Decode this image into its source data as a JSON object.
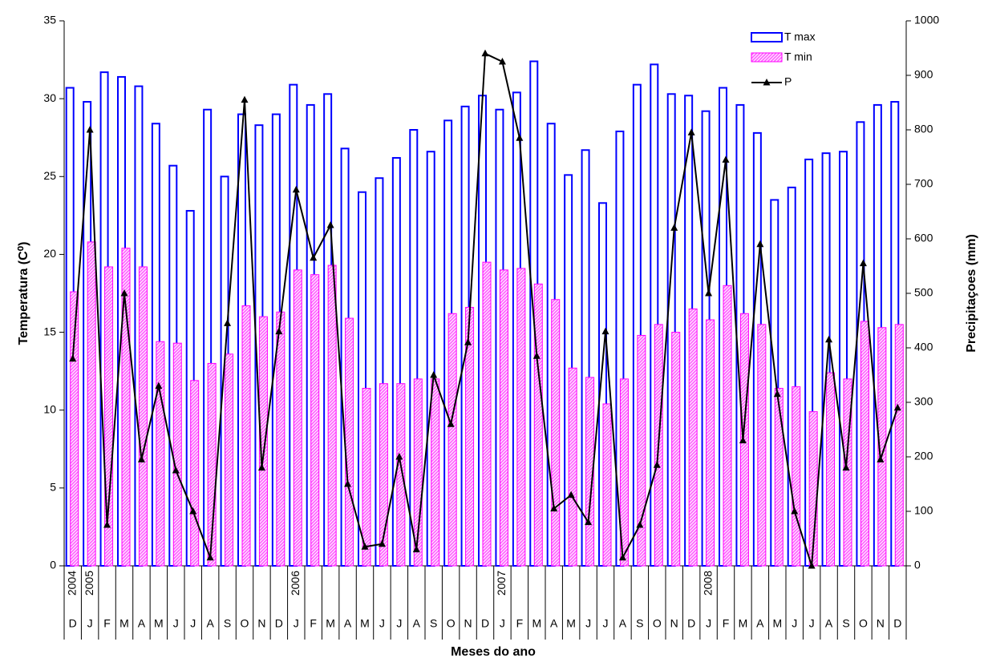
{
  "chart_data": {
    "type": "bar",
    "xlabel": "Meses do ano",
    "ylabel": "Temperatura (C⁰)",
    "y2label": "Precipitaçoes (mm)",
    "categories": [
      "D",
      "J",
      "F",
      "M",
      "A",
      "M",
      "J",
      "J",
      "A",
      "S",
      "O",
      "N",
      "D",
      "J",
      "F",
      "M",
      "A",
      "M",
      "J",
      "J",
      "A",
      "S",
      "O",
      "N",
      "D",
      "J",
      "F",
      "M",
      "A",
      "M",
      "J",
      "J",
      "A",
      "S",
      "O",
      "N",
      "D",
      "J",
      "F",
      "M",
      "A",
      "M",
      "J",
      "J",
      "A",
      "S",
      "O",
      "N",
      "D"
    ],
    "years": [
      "2004",
      "2005",
      null,
      null,
      null,
      null,
      null,
      null,
      null,
      null,
      null,
      null,
      null,
      "2006",
      null,
      null,
      null,
      null,
      null,
      null,
      null,
      null,
      null,
      null,
      null,
      "2007",
      null,
      null,
      null,
      null,
      null,
      null,
      null,
      null,
      null,
      null,
      null,
      "2008",
      null,
      null,
      null,
      null,
      null,
      null,
      null,
      null,
      null,
      null,
      null
    ],
    "series": [
      {
        "name": "T max",
        "type": "bar",
        "color": "#0000ff",
        "values": [
          30.7,
          29.8,
          31.7,
          31.4,
          30.8,
          28.4,
          25.7,
          22.8,
          29.3,
          25.0,
          29.0,
          28.3,
          29.0,
          30.9,
          29.6,
          30.3,
          26.8,
          24.0,
          24.9,
          26.2,
          28.0,
          26.6,
          28.6,
          29.5,
          30.2,
          29.3,
          30.4,
          32.4,
          28.4,
          25.1,
          26.7,
          23.3,
          27.9,
          30.9,
          32.2,
          30.3,
          30.2,
          29.2,
          30.7,
          29.6,
          27.8,
          23.5,
          24.3,
          26.1,
          26.5,
          26.6,
          28.5,
          29.6,
          29.8
        ]
      },
      {
        "name": "T min",
        "type": "bar",
        "color": "#ff00ff",
        "values": [
          17.6,
          20.8,
          19.2,
          20.4,
          19.2,
          14.4,
          14.3,
          11.9,
          13.0,
          13.6,
          16.7,
          16.0,
          16.3,
          19.0,
          18.7,
          19.3,
          15.9,
          11.4,
          11.7,
          11.7,
          12.0,
          12.0,
          16.2,
          16.6,
          19.5,
          19.0,
          19.1,
          18.1,
          17.1,
          12.7,
          12.1,
          10.4,
          12.0,
          14.8,
          15.5,
          15.0,
          16.5,
          15.8,
          18.0,
          16.2,
          15.5,
          11.4,
          11.5,
          9.9,
          12.4,
          12.0,
          15.7,
          15.3,
          15.5
        ]
      },
      {
        "name": "P",
        "type": "line",
        "axis": "y2",
        "color": "#000000",
        "values": [
          380,
          800,
          75,
          500,
          195,
          330,
          175,
          100,
          15,
          445,
          855,
          180,
          430,
          690,
          565,
          625,
          150,
          35,
          40,
          200,
          30,
          350,
          260,
          410,
          940,
          925,
          785,
          385,
          105,
          130,
          80,
          430,
          15,
          75,
          185,
          620,
          795,
          500,
          745,
          230,
          590,
          315,
          100,
          0,
          415,
          180,
          555,
          195,
          290
        ]
      }
    ],
    "ylim": [
      0,
      35
    ],
    "yticks": [
      0,
      5,
      10,
      15,
      20,
      25,
      30,
      35
    ],
    "y2lim": [
      0,
      1000
    ],
    "y2ticks": [
      0,
      100,
      200,
      300,
      400,
      500,
      600,
      700,
      800,
      900,
      1000
    ]
  }
}
